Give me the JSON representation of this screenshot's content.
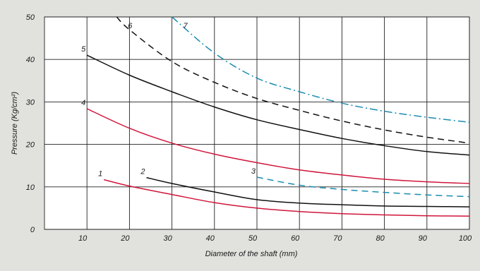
{
  "chart_data": {
    "type": "line",
    "title": "",
    "xlabel": "Diameter of the shaft (mm)",
    "ylabel": "Pressure (Kg/cm²)",
    "xlim": [
      0,
      100
    ],
    "ylim": [
      0,
      50
    ],
    "x_ticks": [
      "10",
      "20",
      "30",
      "40",
      "50",
      "60",
      "70",
      "80",
      "90",
      "100"
    ],
    "y_ticks": [
      "0",
      "10",
      "20",
      "30",
      "40",
      "50"
    ],
    "grid": true,
    "background": "#e1e1de",
    "plot_background": "#ffffff",
    "series": [
      {
        "name": "1",
        "color": "#d0153b",
        "dash": "solid",
        "x": [
          14,
          20,
          30,
          40,
          50,
          60,
          70,
          80,
          90,
          100
        ],
        "y": [
          11.7,
          10.2,
          8.2,
          6.3,
          5.0,
          4.2,
          3.7,
          3.4,
          3.2,
          3.1
        ]
      },
      {
        "name": "2",
        "color": "#111111",
        "dash": "solid",
        "x": [
          24,
          30,
          40,
          50,
          60,
          70,
          80,
          90,
          100
        ],
        "y": [
          12.2,
          10.8,
          8.8,
          7.0,
          6.2,
          5.8,
          5.5,
          5.4,
          5.3
        ]
      },
      {
        "name": "3",
        "color": "#1a8cb0",
        "dash": "dash",
        "x": [
          50,
          60,
          70,
          80,
          90,
          100
        ],
        "y": [
          12.3,
          10.4,
          9.4,
          8.7,
          8.1,
          7.7
        ]
      },
      {
        "name": "4",
        "color": "#d0153b",
        "dash": "solid",
        "x": [
          10,
          20,
          30,
          40,
          50,
          60,
          70,
          80,
          90,
          100
        ],
        "y": [
          28.4,
          23.8,
          20.3,
          17.7,
          15.7,
          14.0,
          12.8,
          11.8,
          11.2,
          10.8
        ]
      },
      {
        "name": "5",
        "color": "#111111",
        "dash": "solid",
        "x": [
          10,
          20,
          30,
          40,
          50,
          60,
          70,
          80,
          90,
          100
        ],
        "y": [
          41.0,
          36.3,
          32.4,
          28.8,
          25.8,
          23.5,
          21.4,
          19.7,
          18.3,
          17.5
        ]
      },
      {
        "name": "6",
        "color": "#111111",
        "dash": "dash",
        "x": [
          17,
          20,
          30,
          40,
          50,
          60,
          70,
          80,
          90,
          100
        ],
        "y": [
          50.0,
          47.0,
          39.5,
          34.6,
          30.8,
          28.0,
          25.5,
          23.4,
          21.7,
          20.3
        ]
      },
      {
        "name": "7",
        "color": "#1a8cb0",
        "dash": "dashdot",
        "x": [
          30,
          40,
          50,
          60,
          70,
          80,
          90,
          100
        ],
        "y": [
          50.0,
          41.5,
          35.6,
          32.4,
          29.7,
          27.8,
          26.4,
          25.2
        ]
      }
    ]
  }
}
